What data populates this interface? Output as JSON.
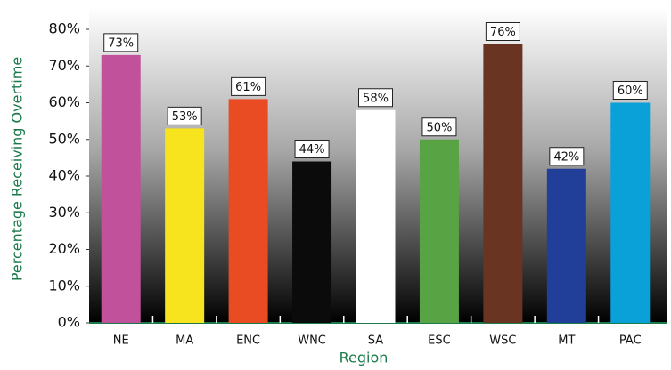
{
  "chart_data": {
    "type": "bar",
    "x_label": "Region",
    "y_label": "Percentage Receiving Overtime",
    "categories": [
      "NE",
      "MA",
      "ENC",
      "WNC",
      "SA",
      "ESC",
      "WSC",
      "MT",
      "PAC"
    ],
    "values": [
      73,
      53,
      61,
      44,
      58,
      50,
      76,
      42,
      60
    ],
    "value_labels": [
      "73%",
      "53%",
      "61%",
      "44%",
      "58%",
      "50%",
      "76%",
      "42%",
      "60%"
    ],
    "colors": [
      "#c1519b",
      "#f7e41f",
      "#e94b23",
      "#0b0b0b",
      "#ffffff",
      "#58a445",
      "#6a3422",
      "#213f99",
      "#0aa1d9"
    ],
    "ylim": [
      0,
      80
    ],
    "yticks": [
      {
        "value": 0,
        "label": "0%"
      },
      {
        "value": 10,
        "label": "10%"
      },
      {
        "value": 20,
        "label": "20%"
      },
      {
        "value": 30,
        "label": "30%"
      },
      {
        "value": 40,
        "label": "40%"
      },
      {
        "value": 50,
        "label": "50%"
      },
      {
        "value": 60,
        "label": "60%"
      },
      {
        "value": 70,
        "label": "70%"
      },
      {
        "value": 80,
        "label": "80%"
      }
    ]
  }
}
